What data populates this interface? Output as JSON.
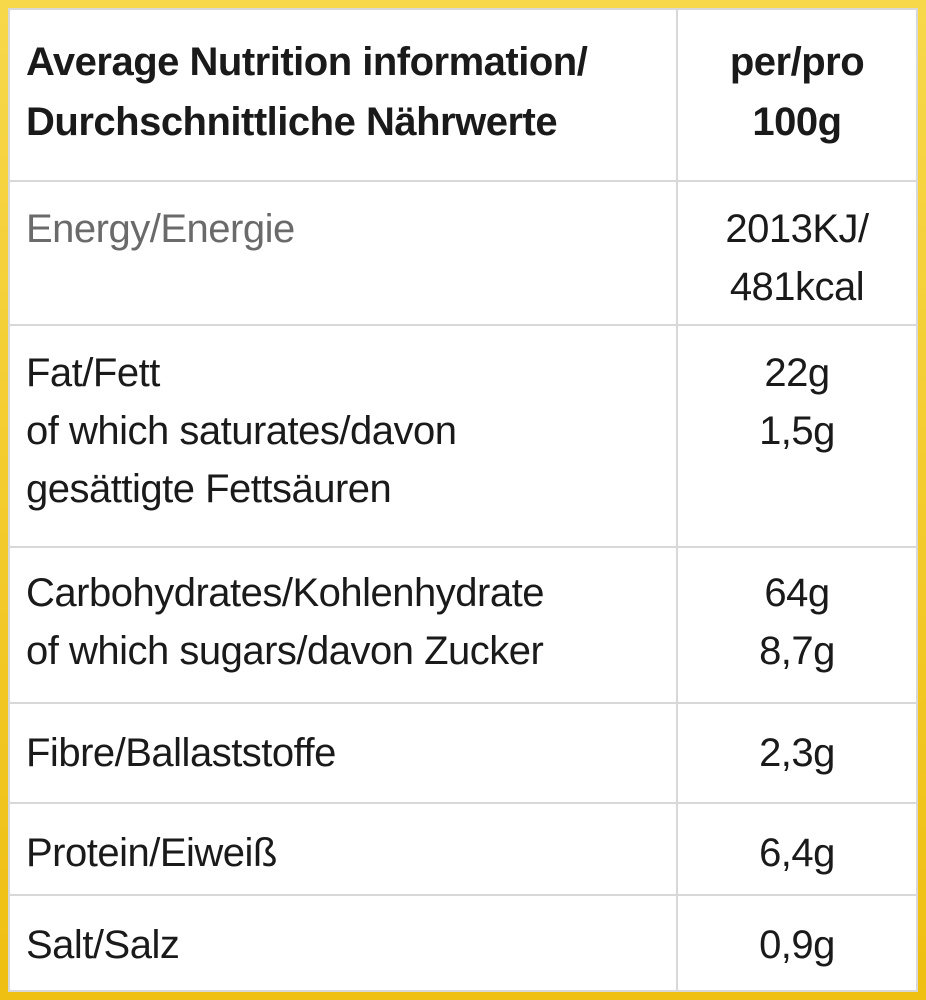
{
  "header": {
    "label_line1": "Average Nutrition information/",
    "label_line2": "Durchschnittliche Nährwerte",
    "value_line1": "per/pro",
    "value_line2": "100g"
  },
  "rows": [
    {
      "lines": [
        "Energy/Energie"
      ],
      "values": [
        "2013KJ/",
        "481kcal"
      ]
    },
    {
      "lines": [
        "Fat/Fett",
        "of which saturates/davon",
        "gesättigte Fettsäuren"
      ],
      "values": [
        "22g",
        "1,5g"
      ]
    },
    {
      "lines": [
        "Carbohydrates/Kohlenhydrate",
        "of which sugars/davon Zucker"
      ],
      "values": [
        "64g",
        "8,7g"
      ]
    },
    {
      "lines": [
        "Fibre/Ballaststoffe"
      ],
      "values": [
        "2,3g"
      ]
    },
    {
      "lines": [
        "Protein/Eiweiß"
      ],
      "values": [
        "6,4g"
      ]
    },
    {
      "lines": [
        "Salt/Salz"
      ],
      "values": [
        "0,9g"
      ]
    }
  ],
  "colors": {
    "border_frame": "#f2c21b",
    "grid": "#d8d8d8",
    "text": "#1a1a1a"
  }
}
